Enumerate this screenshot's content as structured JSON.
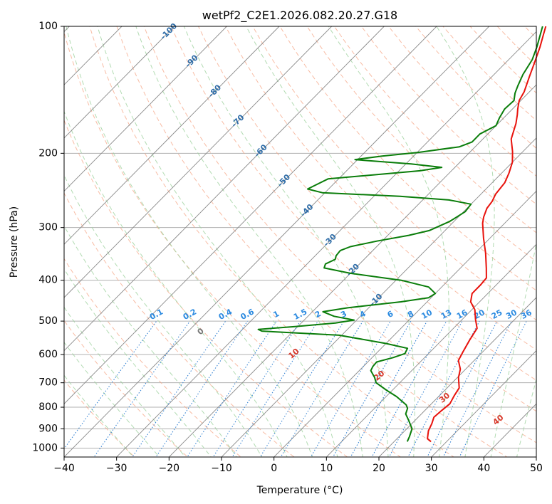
{
  "chart_data": {
    "type": "line",
    "subtype": "skew-t log-p",
    "title": "wetPf2_C2E1.2026.082.20.27.G18",
    "xlabel": "Temperature (°C)",
    "ylabel": "Pressure (hPa)",
    "xlim": [
      -40,
      50
    ],
    "ylim": [
      1050,
      100
    ],
    "y_scale": "log",
    "grid": true,
    "x_ticks": [
      -40,
      -30,
      -20,
      -10,
      0,
      10,
      20,
      30,
      40,
      50
    ],
    "x_tick_labels": [
      "−40",
      "−30",
      "−20",
      "−10",
      "0",
      "10",
      "20",
      "30",
      "40",
      "50"
    ],
    "y_ticks": [
      100,
      200,
      300,
      400,
      500,
      600,
      700,
      800,
      900,
      1000
    ],
    "y_tick_labels": [
      "100",
      "200",
      "300",
      "400",
      "500",
      "600",
      "700",
      "800",
      "900",
      "1000"
    ],
    "colors": {
      "temperature": "#e8120c",
      "dewpoint": "#0a7d0a",
      "isotherm": "#8a8a8a",
      "dry_adiabat": "#f5a585",
      "moist_adiabat": "#9fd29f",
      "mixing_ratio": "#3a86d4",
      "isotherm_label": "#2f6da8",
      "mixing_ratio_label": "#2b8ae0",
      "adiabat_label": "#d83a2c"
    },
    "series": [
      {
        "role": "temperature",
        "points": [
          [
            27.0,
            965
          ],
          [
            25.8,
            950
          ],
          [
            24.5,
            910
          ],
          [
            23.8,
            875
          ],
          [
            23.0,
            845
          ],
          [
            23.2,
            815
          ],
          [
            23.5,
            785
          ],
          [
            22.8,
            750
          ],
          [
            22.3,
            720
          ],
          [
            20.2,
            680
          ],
          [
            19.0,
            650
          ],
          [
            17.0,
            620
          ],
          [
            16.2,
            590
          ],
          [
            15.3,
            555
          ],
          [
            14.5,
            520
          ],
          [
            12.5,
            495
          ],
          [
            10.6,
            470
          ],
          [
            8.3,
            450
          ],
          [
            7.0,
            430
          ],
          [
            7.0,
            410
          ],
          [
            6.8,
            395
          ],
          [
            5.0,
            375
          ],
          [
            2.0,
            345
          ],
          [
            -1.2,
            318
          ],
          [
            -4.2,
            293
          ],
          [
            -5.2,
            283
          ],
          [
            -6.2,
            270
          ],
          [
            -6.5,
            260
          ],
          [
            -7.2,
            250
          ],
          [
            -7.6,
            235
          ],
          [
            -8.6,
            223
          ],
          [
            -10.0,
            210
          ],
          [
            -12.0,
            198
          ],
          [
            -14.6,
            185
          ],
          [
            -16.6,
            170
          ],
          [
            -18.0,
            162
          ],
          [
            -19.0,
            157
          ],
          [
            -20.3,
            150
          ],
          [
            -21.0,
            143
          ],
          [
            -22.8,
            132
          ],
          [
            -24.5,
            122
          ],
          [
            -26.4,
            112
          ],
          [
            -28.0,
            105
          ],
          [
            -29.2,
            100
          ]
        ]
      },
      {
        "role": "dewpoint",
        "points": [
          [
            22.5,
            965
          ],
          [
            22.0,
            940
          ],
          [
            21.0,
            900
          ],
          [
            18.8,
            860
          ],
          [
            17.0,
            830
          ],
          [
            16.3,
            805
          ],
          [
            15.4,
            790
          ],
          [
            12.0,
            755
          ],
          [
            9.0,
            730
          ],
          [
            5.5,
            700
          ],
          [
            4.2,
            680
          ],
          [
            2.2,
            655
          ],
          [
            1.8,
            640
          ],
          [
            1.7,
            625
          ],
          [
            4.0,
            610
          ],
          [
            5.5,
            597
          ],
          [
            5.0,
            580
          ],
          [
            0.0,
            565
          ],
          [
            -10.5,
            540
          ],
          [
            -26.0,
            528
          ],
          [
            -27.0,
            523
          ],
          [
            -20.5,
            515
          ],
          [
            -13.5,
            505
          ],
          [
            -10.5,
            497
          ],
          [
            -15.0,
            487
          ],
          [
            -18.0,
            475
          ],
          [
            -14.0,
            465
          ],
          [
            -5.0,
            450
          ],
          [
            -0.5,
            440
          ],
          [
            0.0,
            430
          ],
          [
            -2.5,
            415
          ],
          [
            -9.0,
            400
          ],
          [
            -20.0,
            385
          ],
          [
            -26.0,
            374
          ],
          [
            -26.5,
            366
          ],
          [
            -25.5,
            357
          ],
          [
            -26.0,
            350
          ],
          [
            -26.2,
            340
          ],
          [
            -25.0,
            333
          ],
          [
            -21.0,
            323
          ],
          [
            -16.0,
            313
          ],
          [
            -13.0,
            305
          ],
          [
            -10.8,
            290
          ],
          [
            -9.7,
            275
          ],
          [
            -10.0,
            264
          ],
          [
            -15.0,
            258
          ],
          [
            -25.0,
            253
          ],
          [
            -40.5,
            248
          ],
          [
            -44.0,
            243
          ],
          [
            -42.0,
            230
          ],
          [
            -26.0,
            220
          ],
          [
            -22.5,
            216
          ],
          [
            -29.0,
            212
          ],
          [
            -40.5,
            207
          ],
          [
            -36.0,
            203
          ],
          [
            -29.8,
            199
          ],
          [
            -23.0,
            193
          ],
          [
            -21.5,
            188
          ],
          [
            -21.5,
            180
          ],
          [
            -20.0,
            172
          ],
          [
            -20.8,
            165
          ],
          [
            -21.5,
            157
          ],
          [
            -21.3,
            150
          ],
          [
            -22.5,
            144
          ],
          [
            -23.4,
            138
          ],
          [
            -24.5,
            130
          ],
          [
            -25.5,
            120
          ],
          [
            -27.0,
            112
          ],
          [
            -28.6,
            105
          ],
          [
            -29.8,
            100
          ]
        ]
      }
    ],
    "isotherm_labels": [
      "-100",
      "-90",
      "-80",
      "-70",
      "-60",
      "-50",
      "-40",
      "-30",
      "-20",
      "-10"
    ],
    "mixing_ratio_labels": [
      "0.1",
      "0.2",
      "0.4",
      "0.6",
      "1",
      "1.5",
      "2",
      "3",
      "4",
      "6",
      "8",
      "10",
      "13",
      "16",
      "20",
      "25",
      "30",
      "36"
    ],
    "adiabat_labels": [
      "0",
      "10",
      "20",
      "30",
      "40"
    ]
  }
}
